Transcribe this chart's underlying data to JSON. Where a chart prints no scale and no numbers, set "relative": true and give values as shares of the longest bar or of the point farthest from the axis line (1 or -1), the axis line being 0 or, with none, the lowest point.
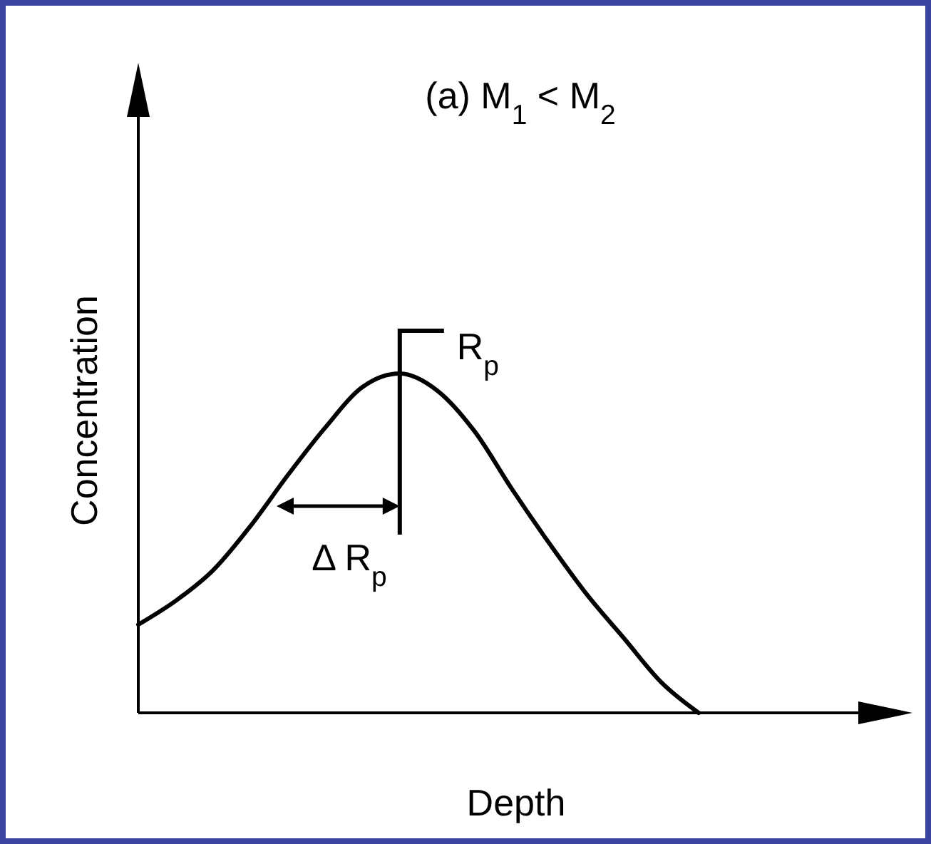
{
  "chart_data": {
    "type": "line",
    "title": "(a)  M$_{1}$ < M$_{2}$",
    "xlabel": "Depth",
    "ylabel": "Concentration",
    "relative": true,
    "categories": [
      null,
      null,
      null,
      null,
      null,
      null,
      null,
      null,
      null,
      null,
      null,
      null,
      null,
      null,
      null,
      null
    ],
    "series": [
      {
        "color": "#000000",
        "values": [
          0.26,
          0.33,
          0.42,
          0.55,
          0.7,
          0.84,
          0.96,
          1.0,
          0.95,
          0.83,
          0.66,
          0.5,
          0.35,
          0.22,
          0.09,
          0
        ]
      }
    ],
    "annotations": [
      "R$_{p}$",
      "Δ R$_{p}$"
    ]
  }
}
